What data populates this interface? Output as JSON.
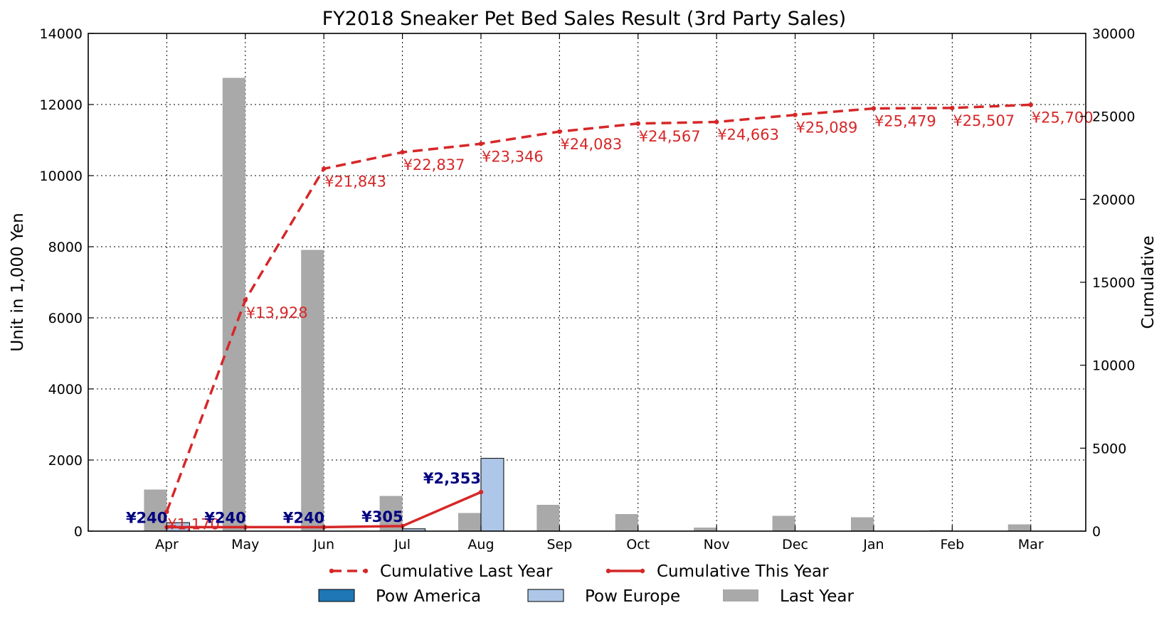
{
  "chart_data": {
    "type": "bar",
    "title": "FY2018 Sneaker Pet Bed   Sales Result (3rd Party Sales)",
    "ylabel": "Unit in 1,000 Yen",
    "y2label": "Cumulative",
    "ylim": [
      0,
      14000
    ],
    "y2lim": [
      0,
      30000
    ],
    "yticks": [
      0,
      2000,
      4000,
      6000,
      8000,
      10000,
      12000,
      14000
    ],
    "y2ticks": [
      0,
      5000,
      10000,
      15000,
      20000,
      25000,
      30000
    ],
    "grid": true,
    "categories": [
      "Apr",
      "May",
      "Jun",
      "Jul",
      "Aug",
      "Sep",
      "Oct",
      "Nov",
      "Dec",
      "Jan",
      "Feb",
      "Mar"
    ],
    "bar_series": [
      {
        "name": "Last Year",
        "color": "#a9a9a9",
        "values": [
          1170,
          12750,
          7910,
          990,
          510,
          740,
          480,
          100,
          430,
          390,
          30,
          190
        ]
      },
      {
        "name": "Pow America",
        "color": "#1f77b4",
        "values": [
          0,
          0,
          0,
          0,
          0,
          0,
          0,
          0,
          0,
          0,
          0,
          0
        ]
      },
      {
        "name": "Pow Europe",
        "color": "#aec7e8",
        "values": [
          240,
          0,
          0,
          65,
          2048,
          0,
          0,
          0,
          0,
          0,
          0,
          0
        ]
      }
    ],
    "bar_labels": [
      {
        "category": "Apr",
        "text": "¥240"
      },
      {
        "category": "May",
        "text": "¥240"
      },
      {
        "category": "Jun",
        "text": "¥240"
      },
      {
        "category": "Jul",
        "text": "¥305"
      },
      {
        "category": "Aug",
        "text": "¥2,353"
      }
    ],
    "line_series": [
      {
        "name": "Cumulative Last Year",
        "color": "#d62728",
        "style": "dashed",
        "axis": "right",
        "values": [
          1170,
          13928,
          21843,
          22837,
          23346,
          24083,
          24567,
          24663,
          25089,
          25479,
          25507,
          25700
        ],
        "labels": [
          "¥1,170",
          "¥13,928",
          "¥21,843",
          "¥22,837",
          "¥23,346",
          "¥24,083",
          "¥24,567",
          "¥24,663",
          "¥25,089",
          "¥25,479",
          "¥25,507",
          "¥25,700"
        ]
      },
      {
        "name": "Cumulative This Year",
        "color": "#d62728",
        "style": "solid",
        "axis": "right",
        "values": [
          240,
          240,
          240,
          305,
          2353
        ]
      }
    ],
    "legend": {
      "placement": "bottom",
      "entries": [
        "Cumulative Last Year",
        "Cumulative This Year",
        "Pow America",
        "Pow Europe",
        "Last Year"
      ]
    }
  }
}
